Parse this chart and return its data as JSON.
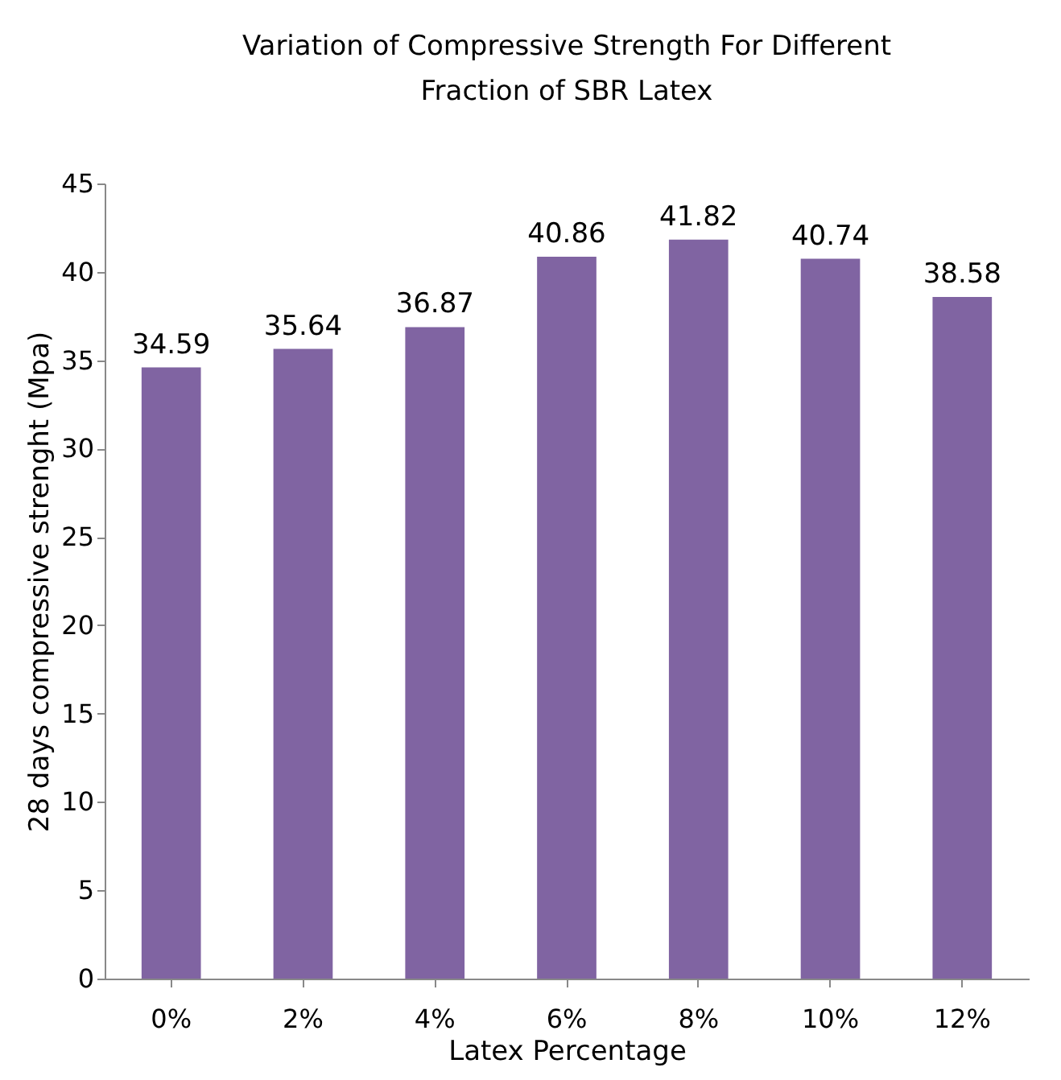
{
  "chart_data": {
    "type": "bar",
    "title": "Variation of Compressive Strength For Different\nFraction of SBR Latex",
    "xlabel": "Latex Percentage",
    "ylabel": "28 days compressive strenght (Mpa)",
    "categories": [
      "0%",
      "2%",
      "4%",
      "6%",
      "8%",
      "10%",
      "12%"
    ],
    "values": [
      34.59,
      35.64,
      36.87,
      40.86,
      41.82,
      40.74,
      38.58
    ],
    "color": "#8064a2",
    "ylim": [
      0,
      45
    ],
    "yticks": [
      0,
      5,
      10,
      15,
      20,
      25,
      30,
      35,
      40,
      45
    ],
    "grid": false,
    "data_labels": true
  }
}
